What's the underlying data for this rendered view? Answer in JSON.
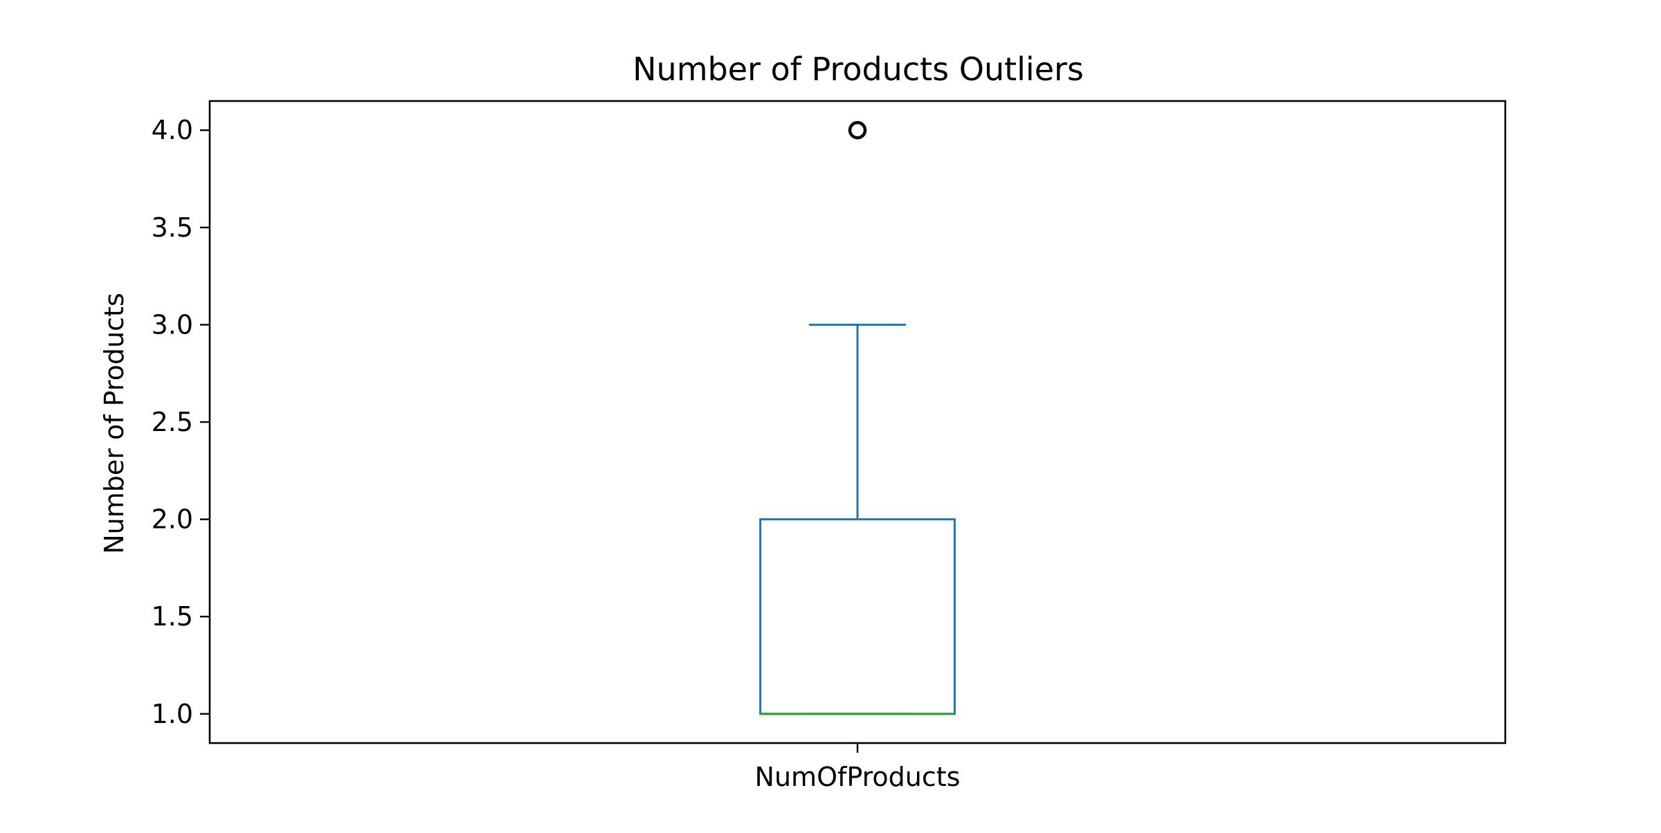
{
  "chart_data": {
    "type": "box",
    "title": "Number of Products Outliers",
    "xlabel": "",
    "ylabel": "Number of Products",
    "categories": [
      "NumOfProducts"
    ],
    "ylim": [
      0.85,
      4.15
    ],
    "yticks": [
      "1.0",
      "1.5",
      "2.0",
      "2.5",
      "3.0",
      "3.5",
      "4.0"
    ],
    "grid": false,
    "boxes": [
      {
        "name": "NumOfProducts",
        "whisker_low": 1.0,
        "q1": 1.0,
        "median": 1.0,
        "q3": 2.0,
        "whisker_high": 3.0,
        "outliers": [
          4.0
        ]
      }
    ],
    "colors": {
      "box": "#1f77b4",
      "whisker": "#1f77b4",
      "cap": "#1f77b4",
      "median": "#2ca02c",
      "outlier": "#000000",
      "axes": "#000000"
    }
  }
}
